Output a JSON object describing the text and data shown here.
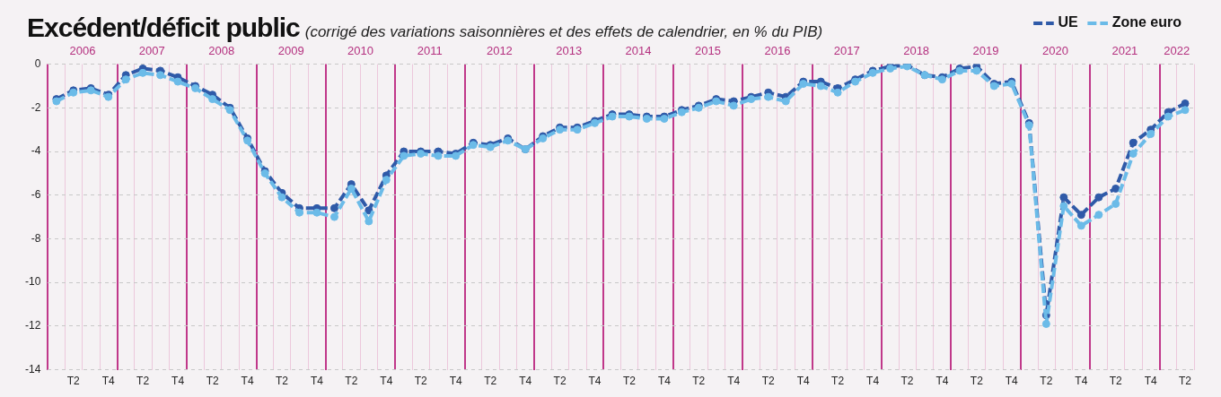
{
  "chart_data": {
    "type": "line",
    "title": "Excédent/déficit public",
    "subtitle": "(corrigé des variations saisonnières et des effets de calendrier, en % du PIB)",
    "x": [
      "2006-02-15",
      "2006-05-15",
      "2006-08-15",
      "2006-11-15",
      "2007-02-15",
      "2007-05-15",
      "2007-08-15",
      "2007-11-15",
      "2008-02-15",
      "2008-05-15",
      "2008-08-15",
      "2008-11-15",
      "2009-02-15",
      "2009-05-15",
      "2009-08-15",
      "2009-11-15",
      "2010-02-15",
      "2010-05-15",
      "2010-08-15",
      "2010-11-15",
      "2011-02-15",
      "2011-05-15",
      "2011-08-15",
      "2011-11-15",
      "2012-02-15",
      "2012-05-15",
      "2012-08-15",
      "2012-11-15",
      "2013-02-15",
      "2013-05-15",
      "2013-08-15",
      "2013-11-15",
      "2014-02-15",
      "2014-05-15",
      "2014-08-15",
      "2014-11-15",
      "2015-02-15",
      "2015-05-15",
      "2015-08-15",
      "2015-11-15",
      "2016-02-15",
      "2016-05-15",
      "2016-08-15",
      "2016-11-15",
      "2017-02-15",
      "2017-05-15",
      "2017-08-15",
      "2017-11-15",
      "2018-02-15",
      "2018-05-15",
      "2018-08-15",
      "2018-11-15",
      "2019-02-15",
      "2019-05-15",
      "2019-08-15",
      "2019-11-15",
      "2020-02-15",
      "2020-05-15",
      "2020-08-15",
      "2020-11-15",
      "2021-02-15",
      "2021-05-15",
      "2021-08-15",
      "2021-11-15",
      "2022-02-15",
      "2022-05-15"
    ],
    "series": [
      {
        "name": "UE",
        "color": "#2f5aa8",
        "values": [
          -1.6,
          -1.2,
          -1.1,
          -1.4,
          -0.5,
          -0.2,
          -0.3,
          -0.6,
          -1.0,
          -1.4,
          -2.0,
          -3.4,
          -4.9,
          -5.9,
          -6.6,
          -6.6,
          -6.6,
          -5.5,
          -6.7,
          -5.1,
          -4.0,
          -4.0,
          -4.0,
          -4.1,
          -3.6,
          -3.7,
          -3.4,
          -3.9,
          -3.3,
          -2.9,
          -2.9,
          -2.6,
          -2.3,
          -2.3,
          -2.4,
          -2.4,
          -2.1,
          -1.9,
          -1.6,
          -1.7,
          -1.5,
          -1.3,
          -1.5,
          -0.8,
          -0.8,
          -1.1,
          -0.7,
          -0.3,
          -0.1,
          -0.05,
          -0.5,
          -0.6,
          -0.2,
          -0.1,
          -0.9,
          -0.8,
          -2.7,
          -11.5,
          -6.1,
          -6.9,
          -6.1,
          -5.7,
          -3.6,
          -3.0,
          -2.2,
          -1.8
        ]
      },
      {
        "name": "Zone euro",
        "color": "#6bbbe8",
        "values": [
          -1.7,
          -1.3,
          -1.2,
          -1.5,
          -0.7,
          -0.4,
          -0.5,
          -0.8,
          -1.1,
          -1.6,
          -2.1,
          -3.5,
          -5.0,
          -6.1,
          -6.8,
          -6.8,
          -7.0,
          -5.7,
          -7.2,
          -5.3,
          -4.2,
          -4.1,
          -4.2,
          -4.2,
          -3.7,
          -3.8,
          -3.5,
          -3.9,
          -3.4,
          -3.0,
          -3.0,
          -2.7,
          -2.4,
          -2.4,
          -2.5,
          -2.5,
          -2.2,
          -2.0,
          -1.7,
          -1.9,
          -1.6,
          -1.5,
          -1.7,
          -0.9,
          -1.0,
          -1.3,
          -0.8,
          -0.4,
          -0.2,
          -0.1,
          -0.5,
          -0.7,
          -0.3,
          -0.3,
          -1.0,
          -0.9,
          -2.8,
          -11.9,
          -6.5,
          -7.4,
          -6.9,
          -6.4,
          -4.1,
          -3.2,
          -2.4,
          -2.1
        ]
      }
    ],
    "xlim": [
      "2006-01-01",
      "2022-07-01"
    ],
    "xticks": [
      {
        "value": "2006-01-01",
        "label": null
      },
      {
        "value": "2006-04-01",
        "label": null
      },
      {
        "value": "2006-05-15",
        "label": "T2"
      },
      {
        "value": "2006-07-01",
        "label": null
      },
      {
        "value": "2006-10-01",
        "label": null
      },
      {
        "value": "2006-11-15",
        "label": "T4"
      },
      {
        "value": "2007-01-01",
        "label": null
      },
      {
        "value": "2007-04-01",
        "label": null
      },
      {
        "value": "2007-05-15",
        "label": "T2"
      },
      {
        "value": "2007-07-01",
        "label": null
      },
      {
        "value": "2007-10-01",
        "label": null
      },
      {
        "value": "2007-11-15",
        "label": "T4"
      },
      {
        "value": "2008-01-01",
        "label": null
      },
      {
        "value": "2008-04-01",
        "label": null
      },
      {
        "value": "2008-05-15",
        "label": "T2"
      },
      {
        "value": "2008-07-01",
        "label": null
      },
      {
        "value": "2008-10-01",
        "label": null
      },
      {
        "value": "2008-11-15",
        "label": "T4"
      },
      {
        "value": "2009-01-01",
        "label": null
      },
      {
        "value": "2009-04-01",
        "label": null
      },
      {
        "value": "2009-05-15",
        "label": "T2"
      },
      {
        "value": "2009-07-01",
        "label": null
      },
      {
        "value": "2009-10-01",
        "label": null
      },
      {
        "value": "2009-11-15",
        "label": "T4"
      },
      {
        "value": "2010-01-01",
        "label": null
      },
      {
        "value": "2010-04-01",
        "label": null
      },
      {
        "value": "2010-05-15",
        "label": "T2"
      },
      {
        "value": "2010-07-01",
        "label": null
      },
      {
        "value": "2010-10-01",
        "label": null
      },
      {
        "value": "2010-11-15",
        "label": "T4"
      },
      {
        "value": "2011-01-01",
        "label": null
      },
      {
        "value": "2011-04-01",
        "label": null
      },
      {
        "value": "2011-05-15",
        "label": "T2"
      },
      {
        "value": "2011-07-01",
        "label": null
      },
      {
        "value": "2011-10-01",
        "label": null
      },
      {
        "value": "2011-11-15",
        "label": "T4"
      },
      {
        "value": "2012-01-01",
        "label": null
      },
      {
        "value": "2012-04-01",
        "label": null
      },
      {
        "value": "2012-05-15",
        "label": "T2"
      },
      {
        "value": "2012-07-01",
        "label": null
      },
      {
        "value": "2012-10-01",
        "label": null
      },
      {
        "value": "2012-11-15",
        "label": "T4"
      },
      {
        "value": "2013-01-01",
        "label": null
      },
      {
        "value": "2013-04-01",
        "label": null
      },
      {
        "value": "2013-05-15",
        "label": "T2"
      },
      {
        "value": "2013-07-01",
        "label": null
      },
      {
        "value": "2013-10-01",
        "label": null
      },
      {
        "value": "2013-11-15",
        "label": "T4"
      },
      {
        "value": "2014-01-01",
        "label": null
      },
      {
        "value": "2014-04-01",
        "label": null
      },
      {
        "value": "2014-05-15",
        "label": "T2"
      },
      {
        "value": "2014-07-01",
        "label": null
      },
      {
        "value": "2014-10-01",
        "label": null
      },
      {
        "value": "2014-11-15",
        "label": "T4"
      },
      {
        "value": "2015-01-01",
        "label": null
      },
      {
        "value": "2015-04-01",
        "label": null
      },
      {
        "value": "2015-05-15",
        "label": "T2"
      },
      {
        "value": "2015-07-01",
        "label": null
      },
      {
        "value": "2015-10-01",
        "label": null
      },
      {
        "value": "2015-11-15",
        "label": "T4"
      },
      {
        "value": "2016-01-01",
        "label": null
      },
      {
        "value": "2016-04-01",
        "label": null
      },
      {
        "value": "2016-05-15",
        "label": "T2"
      },
      {
        "value": "2016-07-01",
        "label": null
      },
      {
        "value": "2016-10-01",
        "label": null
      },
      {
        "value": "2016-11-15",
        "label": "T4"
      },
      {
        "value": "2017-01-01",
        "label": null
      },
      {
        "value": "2017-04-01",
        "label": null
      },
      {
        "value": "2017-05-15",
        "label": "T2"
      },
      {
        "value": "2017-07-01",
        "label": null
      },
      {
        "value": "2017-10-01",
        "label": null
      },
      {
        "value": "2017-11-15",
        "label": "T4"
      },
      {
        "value": "2018-01-01",
        "label": null
      },
      {
        "value": "2018-04-01",
        "label": null
      },
      {
        "value": "2018-05-15",
        "label": "T2"
      },
      {
        "value": "2018-07-01",
        "label": null
      },
      {
        "value": "2018-10-01",
        "label": null
      },
      {
        "value": "2018-11-15",
        "label": "T4"
      },
      {
        "value": "2019-01-01",
        "label": null
      },
      {
        "value": "2019-04-01",
        "label": null
      },
      {
        "value": "2019-05-15",
        "label": "T2"
      },
      {
        "value": "2019-07-01",
        "label": null
      },
      {
        "value": "2019-10-01",
        "label": null
      },
      {
        "value": "2019-11-15",
        "label": "T4"
      },
      {
        "value": "2020-01-01",
        "label": null
      },
      {
        "value": "2020-04-01",
        "label": null
      },
      {
        "value": "2020-05-15",
        "label": "T2"
      },
      {
        "value": "2020-07-01",
        "label": null
      },
      {
        "value": "2020-10-01",
        "label": null
      },
      {
        "value": "2020-11-15",
        "label": "T4"
      },
      {
        "value": "2021-01-01",
        "label": null
      },
      {
        "value": "2021-04-01",
        "label": null
      },
      {
        "value": "2021-05-15",
        "label": "T2"
      },
      {
        "value": "2021-07-01",
        "label": null
      },
      {
        "value": "2021-10-01",
        "label": null
      },
      {
        "value": "2021-11-15",
        "label": "T4"
      },
      {
        "value": "2022-01-01",
        "label": null
      },
      {
        "value": "2022-04-01",
        "label": null
      },
      {
        "value": "2022-05-15",
        "label": "T2"
      },
      {
        "value": "2022-07-01",
        "label": null
      }
    ],
    "x2lim": [
      "2006-01-01",
      "2022-07-01"
    ],
    "x2ticks": [
      {
        "value": "2006-07-02",
        "label": "2006"
      },
      {
        "value": "2007-07-02",
        "label": "2007"
      },
      {
        "value": "2008-07-02",
        "label": "2008"
      },
      {
        "value": "2009-07-02",
        "label": "2009"
      },
      {
        "value": "2010-07-02",
        "label": "2010"
      },
      {
        "value": "2011-07-02",
        "label": "2011"
      },
      {
        "value": "2012-07-02",
        "label": "2012"
      },
      {
        "value": "2013-07-02",
        "label": "2013"
      },
      {
        "value": "2014-07-02",
        "label": "2014"
      },
      {
        "value": "2015-07-02",
        "label": "2015"
      },
      {
        "value": "2016-07-02",
        "label": "2016"
      },
      {
        "value": "2017-07-02",
        "label": "2017"
      },
      {
        "value": "2018-07-02",
        "label": "2018"
      },
      {
        "value": "2019-07-02",
        "label": "2019"
      },
      {
        "value": "2020-07-02",
        "label": "2020"
      },
      {
        "value": "2021-07-02",
        "label": "2021"
      },
      {
        "value": "2022-04-01",
        "label": "2022"
      }
    ],
    "ylim": [
      -14,
      0
    ],
    "yticks": [
      -14,
      -12,
      -10,
      -8,
      -6,
      -4,
      -2,
      0
    ],
    "grid": true,
    "legend": "top right",
    "marker": "circle",
    "line_style": "dashed"
  }
}
